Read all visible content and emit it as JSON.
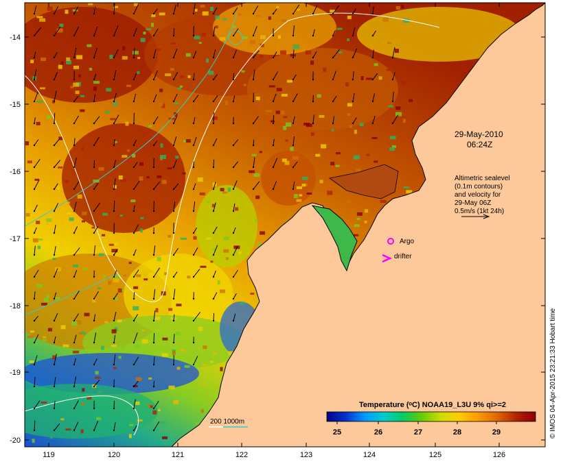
{
  "map": {
    "lon_ticks": [
      "119",
      "120",
      "121",
      "122",
      "123",
      "124",
      "125",
      "126"
    ],
    "lat_ticks": [
      "-14",
      "-15",
      "-16",
      "-17",
      "-18",
      "-19",
      "-20"
    ],
    "land_color": "#fdc89a",
    "land_outline_color": "#000000"
  },
  "annotations": {
    "date": "29-May-2010",
    "time": "06:24Z",
    "velocity_note": [
      "Altimetric sealevel",
      "(0.1m contours)",
      "and velocity for",
      "29-May 06Z",
      "0.5m/s (1kt 24h)"
    ],
    "argo_label": "Argo",
    "drifter_label": "drifter",
    "depth_legend": "200  1000m"
  },
  "colorbar": {
    "title": "Temperature (ᵒC) NOAA19_L3U 9% qi>=2",
    "ticks": [
      "25",
      "26",
      "27",
      "28",
      "29"
    ],
    "colors": [
      "#00008b",
      "#0033cc",
      "#0099ff",
      "#00cccc",
      "#00cc66",
      "#66cc00",
      "#ccdd00",
      "#ffcc00",
      "#ff9900",
      "#dd6600",
      "#b22200",
      "#8b0000"
    ]
  },
  "credit": "© IMOS 04-Apr-2015 23:21:33 Hobart time",
  "legend_colors": {
    "contour_200m": "#ffffff",
    "contour_1000m": "#33cccc",
    "argo": "#ff00ff",
    "drifter": "#ff00ff",
    "arrows": "#000000"
  }
}
